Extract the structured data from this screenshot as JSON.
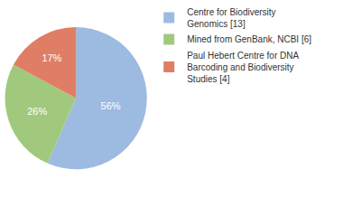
{
  "chart_data": {
    "type": "pie",
    "categories": [
      "Centre for Biodiversity Genomics [13]",
      "Mined from GenBank, NCBI [6]",
      "Paul Hebert Centre for DNA Barcoding and Biodiversity Studies [4]"
    ],
    "values": [
      56,
      26,
      17
    ],
    "value_labels": [
      "56%",
      "26%",
      "17%"
    ],
    "colors": [
      "#9dbae1",
      "#a1c97e",
      "#df7e64"
    ],
    "data_labels": true,
    "legend": "right"
  }
}
